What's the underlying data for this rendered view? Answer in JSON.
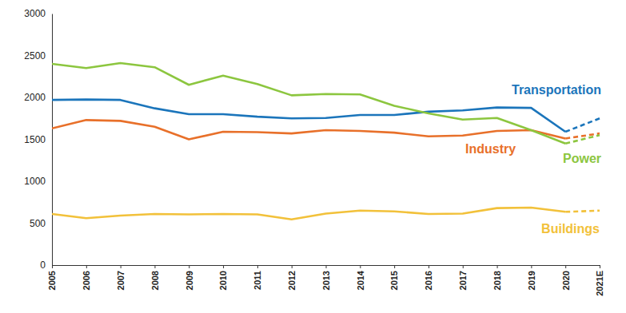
{
  "chart_data": {
    "type": "line",
    "categories": [
      "2005",
      "2006",
      "2007",
      "2008",
      "2009",
      "2010",
      "2011",
      "2012",
      "2013",
      "2014",
      "2015",
      "2016",
      "2017",
      "2018",
      "2019",
      "2020",
      "2021E"
    ],
    "series": [
      {
        "name": "Transportation",
        "color": "#1b75bb",
        "values": [
          1970,
          1975,
          1970,
          1870,
          1800,
          1800,
          1770,
          1750,
          1755,
          1790,
          1790,
          1830,
          1845,
          1880,
          1875,
          1590,
          1750
        ]
      },
      {
        "name": "Industry",
        "color": "#e8702a",
        "values": [
          1630,
          1730,
          1720,
          1650,
          1500,
          1590,
          1585,
          1570,
          1610,
          1600,
          1580,
          1535,
          1545,
          1600,
          1610,
          1510,
          1570
        ]
      },
      {
        "name": "Power",
        "color": "#8cc63f",
        "values": [
          2400,
          2350,
          2410,
          2360,
          2150,
          2260,
          2160,
          2025,
          2040,
          2035,
          1900,
          1810,
          1735,
          1755,
          1610,
          1450,
          1550
        ]
      },
      {
        "name": "Buildings",
        "color": "#f2c13a",
        "values": [
          610,
          560,
          590,
          610,
          605,
          610,
          605,
          545,
          615,
          650,
          640,
          610,
          615,
          680,
          685,
          635,
          650
        ]
      }
    ],
    "ylim": [
      0,
      3000
    ],
    "yticks": [
      0,
      500,
      1000,
      1500,
      2000,
      2500,
      3000
    ],
    "grid": false
  }
}
